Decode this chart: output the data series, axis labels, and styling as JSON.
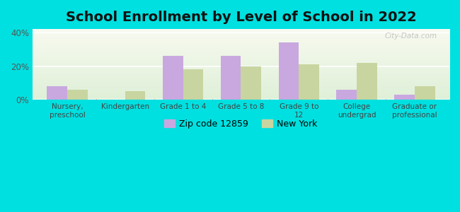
{
  "title": "School Enrollment by Level of School in 2022",
  "categories": [
    "Nursery,\npreschool",
    "Kindergarten",
    "Grade 1 to 4",
    "Grade 5 to 8",
    "Grade 9 to\n12",
    "College\nundergrad",
    "Graduate or\nprofessional"
  ],
  "zip_values": [
    8.0,
    0.0,
    26.0,
    26.0,
    34.0,
    6.0,
    3.0
  ],
  "ny_values": [
    6.0,
    5.0,
    18.0,
    20.0,
    21.0,
    22.0,
    8.0
  ],
  "zip_color": "#c9a8e0",
  "ny_color": "#c8d5a0",
  "zip_label": "Zip code 12859",
  "ny_label": "New York",
  "ylim": [
    0,
    42
  ],
  "yticks": [
    0,
    20,
    40
  ],
  "ytick_labels": [
    "0%",
    "20%",
    "40%"
  ],
  "background_outer": "#00e0e0",
  "title_fontsize": 14,
  "bar_width": 0.35,
  "watermark_text": "City-Data.com",
  "figsize": [
    6.5,
    3.0
  ],
  "dpi": 100
}
